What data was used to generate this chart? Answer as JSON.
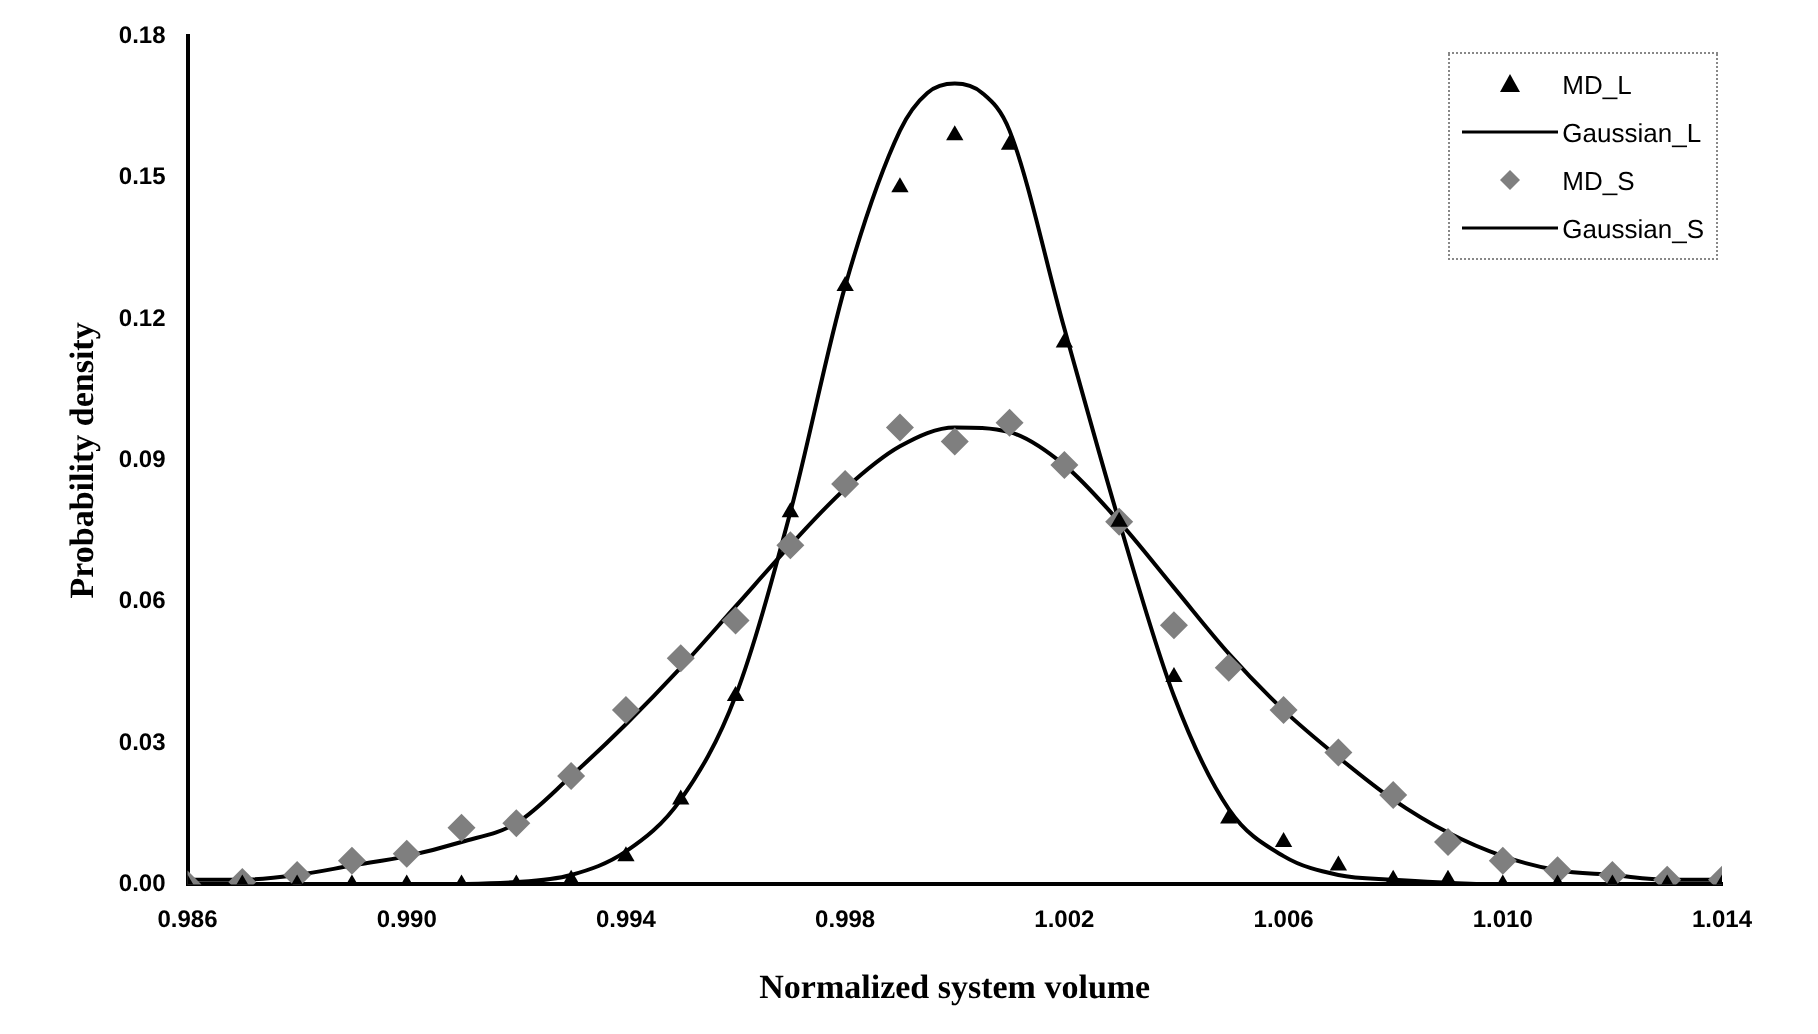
{
  "chart_data": {
    "type": "scatter",
    "xlabel": "Normalized system volume",
    "ylabel": "Probability density",
    "xlim": [
      0.986,
      1.014
    ],
    "ylim": [
      0,
      0.18
    ],
    "xticks": [
      {
        "value": 0.986,
        "label": "0.986"
      },
      {
        "value": 0.99,
        "label": "0.990"
      },
      {
        "value": 0.994,
        "label": "0.994"
      },
      {
        "value": 0.998,
        "label": "0.998"
      },
      {
        "value": 1.002,
        "label": "1.002"
      },
      {
        "value": 1.006,
        "label": "1.006"
      },
      {
        "value": 1.01,
        "label": "1.010"
      },
      {
        "value": 1.014,
        "label": "1.014"
      }
    ],
    "yticks": [
      {
        "value": 0,
        "label": "0.00"
      },
      {
        "value": 0.03,
        "label": "0.03"
      },
      {
        "value": 0.06,
        "label": "0.06"
      },
      {
        "value": 0.09,
        "label": "0.09"
      },
      {
        "value": 0.12,
        "label": "0.12"
      },
      {
        "value": 0.15,
        "label": "0.15"
      },
      {
        "value": 0.18,
        "label": "0.18"
      }
    ],
    "grid": false,
    "legend": "top right",
    "x": [
      0.986,
      0.987,
      0.988,
      0.989,
      0.99,
      0.991,
      0.992,
      0.993,
      0.994,
      0.995,
      0.996,
      0.997,
      0.998,
      0.999,
      1.0,
      1.001,
      1.002,
      1.003,
      1.004,
      1.005,
      1.006,
      1.007,
      1.008,
      1.009,
      1.01,
      1.011,
      1.012,
      1.013,
      1.014
    ],
    "series": [
      {
        "name": "MD_L",
        "type": "scatter",
        "marker": "triangle",
        "color": "#000000",
        "values": [
          0,
          0,
          0,
          0,
          0,
          0,
          0,
          0.001,
          0.006,
          0.018,
          0.04,
          0.079,
          0.127,
          0.148,
          0.159,
          0.157,
          0.115,
          0.077,
          0.044,
          0.014,
          0.009,
          0.004,
          0.001,
          0.001,
          0,
          0,
          0,
          0,
          0
        ]
      },
      {
        "name": "Gaussian_L",
        "type": "line",
        "marker": "none",
        "line_style": "solid",
        "color": "#000000",
        "x": [
          0.989,
          0.99,
          0.992,
          0.993,
          0.994,
          0.995,
          0.996,
          0.997,
          0.998,
          0.999,
          0.9995,
          1.0,
          1.0005,
          1.001,
          1.002,
          1.003,
          1.004,
          1.005,
          1.006,
          1.007,
          1.008,
          1.01,
          1.012
        ],
        "values": [
          0,
          0,
          0.0005,
          0.002,
          0.007,
          0.018,
          0.04,
          0.079,
          0.127,
          0.16,
          0.168,
          0.17,
          0.168,
          0.16,
          0.118,
          0.077,
          0.04,
          0.016,
          0.006,
          0.002,
          0.001,
          0,
          0
        ]
      },
      {
        "name": "MD_S",
        "type": "scatter",
        "marker": "diamond",
        "color": "#7f7f7f",
        "values": [
          0,
          0.0005,
          0.002,
          0.005,
          0.0065,
          0.012,
          0.013,
          0.023,
          0.037,
          0.048,
          0.056,
          0.072,
          0.085,
          0.097,
          0.094,
          0.098,
          0.089,
          0.077,
          0.055,
          0.046,
          0.037,
          0.028,
          0.019,
          0.009,
          0.005,
          0.003,
          0.002,
          0.001,
          0.001
        ]
      },
      {
        "name": "Gaussian_S",
        "type": "line",
        "marker": "none",
        "line_style": "solid",
        "color": "#000000",
        "values": [
          0.001,
          0.001,
          0.002,
          0.004,
          0.006,
          0.009,
          0.013,
          0.023,
          0.034,
          0.046,
          0.059,
          0.072,
          0.084,
          0.093,
          0.097,
          0.096,
          0.089,
          0.077,
          0.063,
          0.049,
          0.037,
          0.027,
          0.018,
          0.011,
          0.006,
          0.003,
          0.002,
          0.001,
          0.001
        ]
      }
    ]
  }
}
